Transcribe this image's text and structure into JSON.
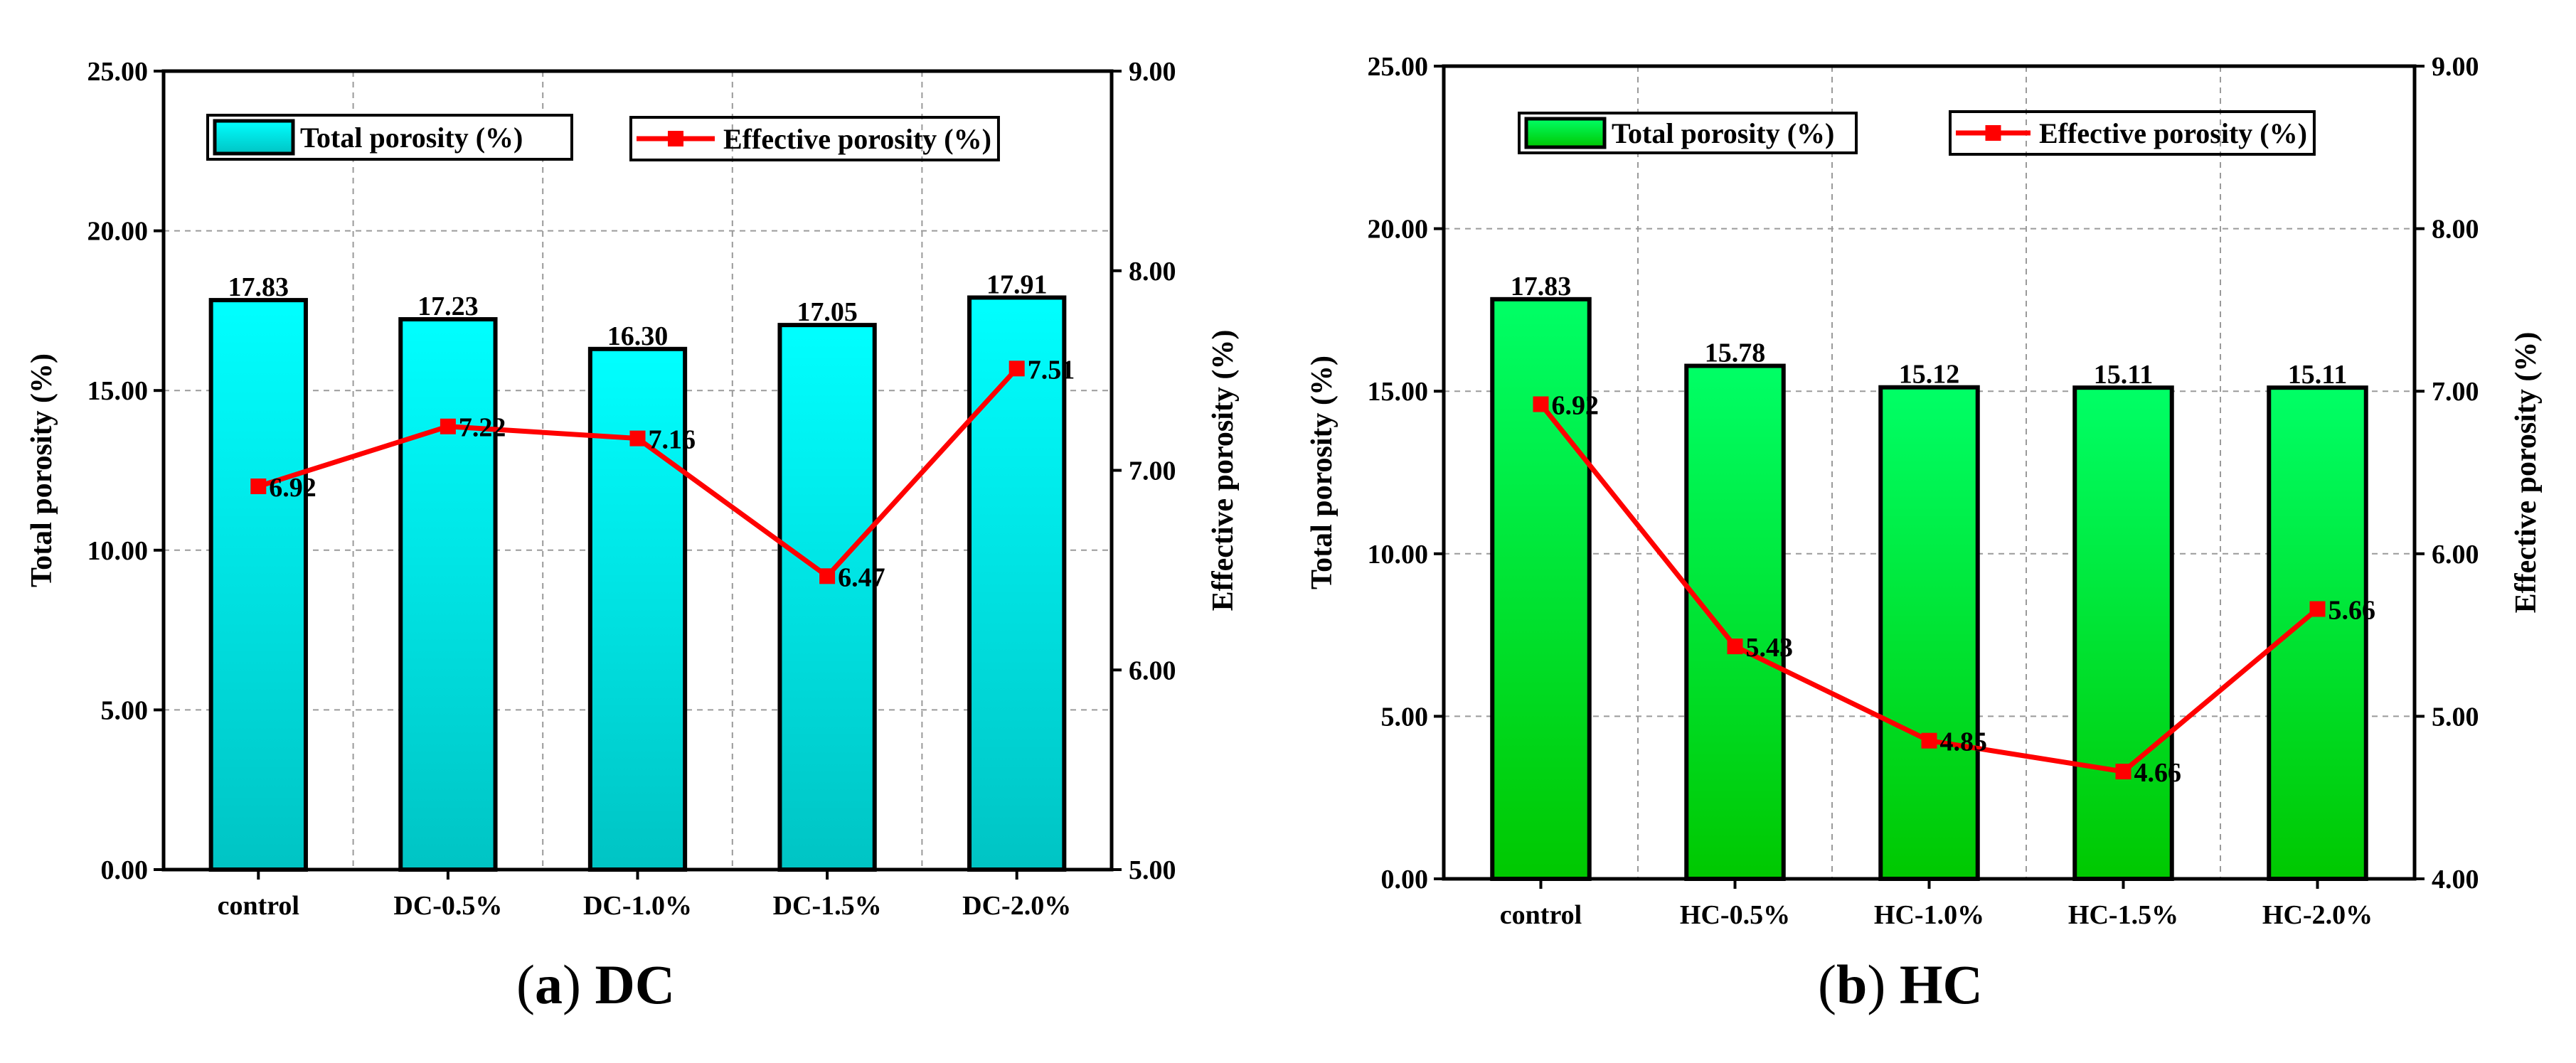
{
  "chart_data": [
    {
      "type": "bar+line",
      "panel": "a",
      "caption_letter": "a",
      "caption_name": "DC",
      "categories": [
        "control",
        "DC-0.5%",
        "DC-1.0%",
        "DC-1.5%",
        "DC-2.0%"
      ],
      "bar_series": {
        "name": "Total porosity (%)",
        "values": [
          17.83,
          17.23,
          16.3,
          17.05,
          17.91
        ],
        "labels": [
          "17.83",
          "17.23",
          "16.30",
          "17.05",
          "17.91"
        ]
      },
      "line_series": {
        "name": "Effective porosity (%)",
        "values": [
          6.92,
          7.22,
          7.16,
          6.47,
          7.51
        ],
        "labels": [
          "6.92",
          "7.22",
          "7.16",
          "6.47",
          "7.51"
        ]
      },
      "ylabel_left": "Total porosity (%)",
      "ylabel_right": "Effective porosity (%)",
      "ylim_left": [
        0,
        25
      ],
      "yticks_left": [
        "0.00",
        "5.00",
        "10.00",
        "15.00",
        "20.00",
        "25.00"
      ],
      "ylim_right": [
        5,
        9
      ],
      "yticks_right": [
        "5.00",
        "6.00",
        "7.00",
        "8.00",
        "9.00"
      ],
      "colors": {
        "bar_top": "#00ffff",
        "bar_bottom": "#00c4c4",
        "line": "#ff0000",
        "marker": "#ff0000"
      },
      "grid": true
    },
    {
      "type": "bar+line",
      "panel": "b",
      "caption_letter": "b",
      "caption_name": "HC",
      "categories": [
        "control",
        "HC-0.5%",
        "HC-1.0%",
        "HC-1.5%",
        "HC-2.0%"
      ],
      "bar_series": {
        "name": "Total porosity (%)",
        "values": [
          17.83,
          15.78,
          15.12,
          15.11,
          15.11
        ],
        "labels": [
          "17.83",
          "15.78",
          "15.12",
          "15.11",
          "15.11"
        ]
      },
      "line_series": {
        "name": "Effective porosity (%)",
        "values": [
          6.92,
          5.43,
          4.85,
          4.66,
          5.66
        ],
        "labels": [
          "6.92",
          "5.43",
          "4.85",
          "4.66",
          "5.66"
        ]
      },
      "ylabel_left": "Total porosity (%)",
      "ylabel_right": "Effective porosity (%)",
      "ylim_left": [
        0,
        25
      ],
      "yticks_left": [
        "0.00",
        "5.00",
        "10.00",
        "15.00",
        "20.00",
        "25.00"
      ],
      "ylim_right": [
        4,
        9
      ],
      "yticks_right": [
        "4.00",
        "5.00",
        "6.00",
        "7.00",
        "8.00",
        "9.00"
      ],
      "colors": {
        "bar_top": "#00ff66",
        "bar_bottom": "#00c800",
        "line": "#ff0000",
        "marker": "#ff0000"
      },
      "grid": true
    }
  ]
}
